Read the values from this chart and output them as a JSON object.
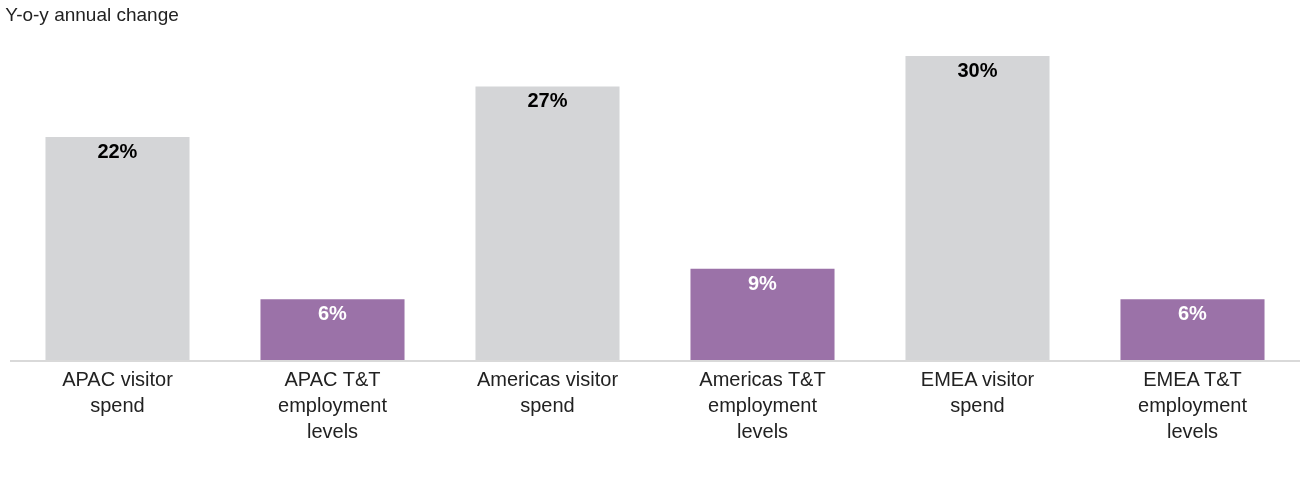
{
  "chart_data": {
    "type": "bar",
    "title": "Y-o-y annual change",
    "categories": [
      "APAC visitor spend",
      "APAC T&T employment levels",
      "Americas visitor spend",
      "Americas T&T employment levels",
      "EMEA visitor spend",
      "EMEA T&T employment levels"
    ],
    "values": [
      22,
      6,
      27,
      9,
      30,
      6
    ],
    "value_labels": [
      "22%",
      "6%",
      "27%",
      "9%",
      "30%",
      "6%"
    ],
    "colors": [
      "#d4d5d7",
      "#9b72a8",
      "#d4d5d7",
      "#9b72a8",
      "#d4d5d7",
      "#9b72a8"
    ]
  }
}
